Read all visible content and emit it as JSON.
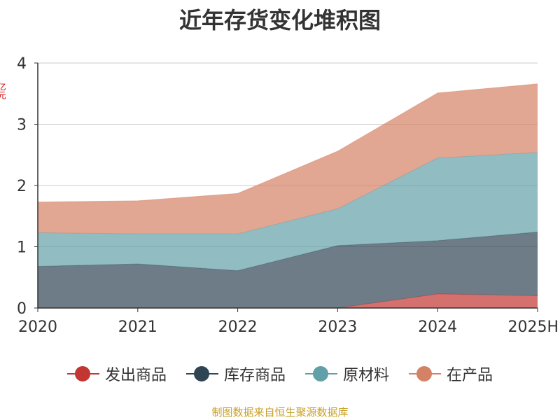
{
  "chart_data": {
    "type": "area",
    "title": "近年存货变化堆积图",
    "ylabel": "亿元",
    "categories": [
      "2020",
      "2021",
      "2022",
      "2023",
      "2024",
      "2025H"
    ],
    "ylim": [
      0,
      4
    ],
    "yticks": [
      0,
      1,
      2,
      3,
      4
    ],
    "grid": true,
    "stacked": true,
    "legend_position": "bottom",
    "series": [
      {
        "name": "发出商品",
        "color": "#c23531",
        "values": [
          0,
          0,
          0,
          0,
          0.23,
          0.2
        ]
      },
      {
        "name": "库存商品",
        "color": "#2f4554",
        "values": [
          0.68,
          0.72,
          0.61,
          1.02,
          0.87,
          1.04
        ]
      },
      {
        "name": "原材料",
        "color": "#61a0a8",
        "values": [
          0.55,
          0.49,
          0.6,
          0.6,
          1.35,
          1.3
        ]
      },
      {
        "name": "在产品",
        "color": "#d48265",
        "values": [
          0.5,
          0.54,
          0.66,
          0.94,
          1.06,
          1.12
        ]
      }
    ]
  },
  "source": "制图数据来自恒生聚源数据库"
}
